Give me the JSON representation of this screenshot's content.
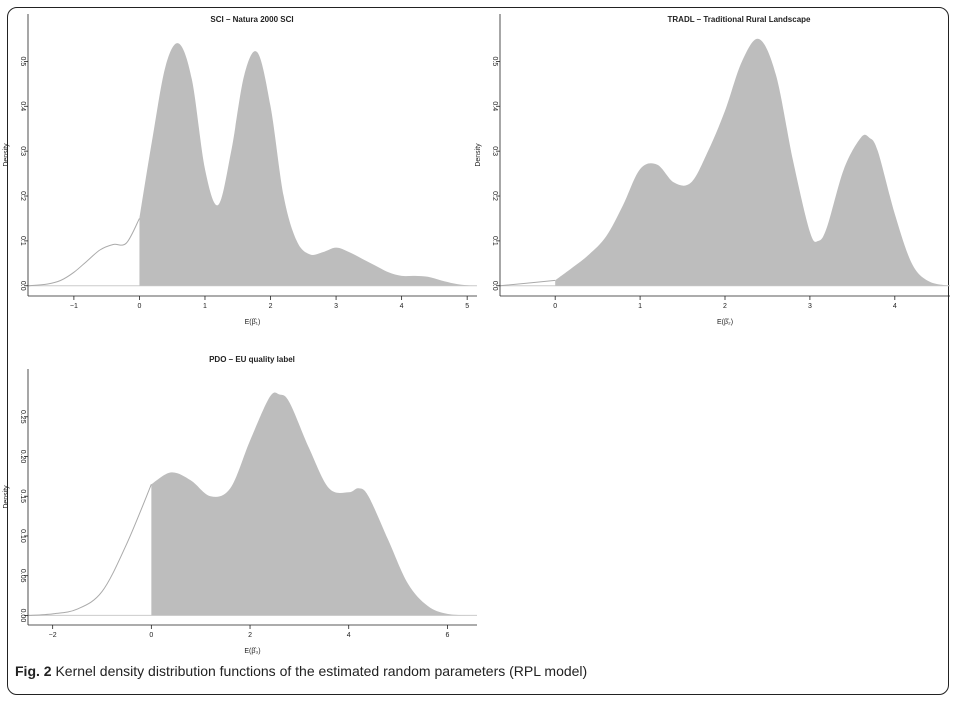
{
  "caption": {
    "label": "Fig. 2",
    "text": "Kernel density distribution functions of the estimated random parameters (RPL model)"
  },
  "colors": {
    "fill": "#bdbdbd",
    "curve": "#aaaaaa",
    "axis": "#222222",
    "baseline": "#cccccc"
  },
  "chart_data": [
    {
      "type": "area",
      "title": "SCI – Natura 2000 SCI",
      "xlabel": "E(β̂₁)",
      "ylabel": "Density",
      "xlim": [
        -1.7,
        5.15
      ],
      "ylim": [
        -0.005,
        0.57
      ],
      "xticks": [
        -1,
        0,
        1,
        2,
        3,
        4,
        5
      ],
      "yticks": [
        0.0,
        0.1,
        0.2,
        0.3,
        0.4,
        0.5
      ],
      "ytick_labels": [
        "0.0",
        "0.1",
        "0.2",
        "0.3",
        "0.4",
        "0.5"
      ],
      "shade_from": 0,
      "x": [
        -1.7,
        -1.4,
        -1.2,
        -1.0,
        -0.8,
        -0.6,
        -0.4,
        -0.2,
        0.0,
        0.2,
        0.4,
        0.6,
        0.8,
        1.0,
        1.2,
        1.4,
        1.6,
        1.8,
        2.0,
        2.2,
        2.4,
        2.6,
        2.8,
        3.0,
        3.2,
        3.4,
        3.6,
        3.8,
        4.0,
        4.2,
        4.4,
        4.6,
        4.8,
        5.0,
        5.15
      ],
      "y": [
        0.0,
        0.004,
        0.012,
        0.03,
        0.055,
        0.08,
        0.092,
        0.095,
        0.15,
        0.33,
        0.49,
        0.54,
        0.46,
        0.26,
        0.18,
        0.3,
        0.47,
        0.52,
        0.4,
        0.2,
        0.1,
        0.07,
        0.075,
        0.085,
        0.075,
        0.06,
        0.045,
        0.03,
        0.022,
        0.022,
        0.02,
        0.012,
        0.005,
        0.001,
        0.0
      ]
    },
    {
      "type": "area",
      "title": "TRADL – Traditional Rural Landscape",
      "xlabel": "E(β̂₂)",
      "ylabel": "Density",
      "xlim": [
        -0.65,
        4.65
      ],
      "ylim": [
        -0.005,
        0.57
      ],
      "xticks": [
        0,
        1,
        2,
        3,
        4
      ],
      "yticks": [
        0.0,
        0.1,
        0.2,
        0.3,
        0.4,
        0.5
      ],
      "ytick_labels": [
        "0.0",
        "0.1",
        "0.2",
        "0.3",
        "0.4",
        "0.5"
      ],
      "shade_from": 0,
      "x": [
        -0.65,
        0.0,
        0.2,
        0.4,
        0.6,
        0.8,
        1.0,
        1.2,
        1.4,
        1.6,
        1.8,
        2.0,
        2.2,
        2.4,
        2.6,
        2.8,
        3.0,
        3.1,
        3.2,
        3.4,
        3.6,
        3.7,
        3.8,
        4.0,
        4.2,
        4.4,
        4.65
      ],
      "y": [
        0.0,
        0.012,
        0.04,
        0.07,
        0.11,
        0.18,
        0.26,
        0.27,
        0.23,
        0.23,
        0.3,
        0.39,
        0.5,
        0.55,
        0.47,
        0.28,
        0.12,
        0.1,
        0.13,
        0.26,
        0.33,
        0.33,
        0.3,
        0.16,
        0.05,
        0.01,
        0.0
      ]
    },
    {
      "type": "area",
      "title": "PDO – EU quality label",
      "xlabel": "E(β̂₃)",
      "ylabel": "Density",
      "xlim": [
        -2.5,
        6.6
      ],
      "ylim": [
        -0.002,
        0.29
      ],
      "xticks": [
        -2,
        0,
        2,
        4,
        6
      ],
      "yticks": [
        0.0,
        0.05,
        0.1,
        0.15,
        0.2,
        0.25
      ],
      "ytick_labels": [
        "0.00",
        "0.05",
        "0.10",
        "0.15",
        "0.20",
        "0.25"
      ],
      "shade_from": 0,
      "x": [
        -2.5,
        -2.0,
        -1.5,
        -1.0,
        -0.5,
        0.0,
        0.4,
        0.8,
        1.2,
        1.6,
        2.0,
        2.4,
        2.6,
        2.8,
        3.2,
        3.6,
        4.0,
        4.2,
        4.4,
        4.8,
        5.2,
        5.6,
        6.0,
        6.6
      ],
      "y": [
        0.0,
        0.002,
        0.008,
        0.03,
        0.09,
        0.165,
        0.18,
        0.17,
        0.15,
        0.16,
        0.22,
        0.275,
        0.278,
        0.268,
        0.21,
        0.16,
        0.155,
        0.16,
        0.15,
        0.095,
        0.04,
        0.012,
        0.002,
        0.0
      ]
    }
  ]
}
